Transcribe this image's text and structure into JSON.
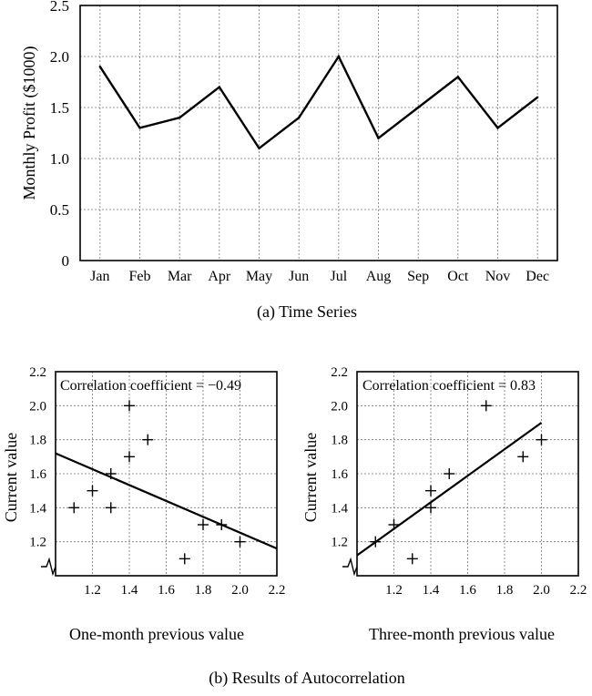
{
  "captions": {
    "time_series": "(a) Time Series",
    "autocorrelation": "(b) Results of Autocorrelation"
  },
  "chart_data": [
    {
      "type": "line",
      "title": "",
      "ylabel": "Monthly Profit ($1000)",
      "xlabel": "",
      "categories": [
        "Jan",
        "Feb",
        "Mar",
        "Apr",
        "May",
        "Jun",
        "Jul",
        "Aug",
        "Sep",
        "Oct",
        "Nov",
        "Dec"
      ],
      "values": [
        1.9,
        1.3,
        1.4,
        1.7,
        1.1,
        1.4,
        2.0,
        1.2,
        1.5,
        1.8,
        1.3,
        1.6
      ],
      "ylim": [
        0,
        2.5
      ],
      "yticks": [
        "0",
        "0.5",
        "1.0",
        "1.5",
        "2.0",
        "2.5"
      ],
      "grid": true
    },
    {
      "type": "scatter",
      "xlabel": "One-month previous value",
      "ylabel": "Current value",
      "annotation": "Correlation coefficient = −0.49",
      "xlim": [
        1.0,
        2.2
      ],
      "ylim": [
        1.0,
        2.2
      ],
      "xticks": [
        "1.2",
        "1.4",
        "1.6",
        "1.8",
        "2.0",
        "2.2"
      ],
      "yticks": [
        "1.2",
        "1.4",
        "1.6",
        "1.8",
        "2.0",
        "2.2"
      ],
      "points": [
        [
          1.1,
          1.4
        ],
        [
          1.2,
          1.5
        ],
        [
          1.3,
          1.4
        ],
        [
          1.3,
          1.6
        ],
        [
          1.4,
          1.7
        ],
        [
          1.4,
          2.0
        ],
        [
          1.5,
          1.8
        ],
        [
          1.7,
          1.1
        ],
        [
          1.8,
          1.3
        ],
        [
          1.9,
          1.3
        ],
        [
          2.0,
          1.2
        ]
      ],
      "trendline": {
        "x": [
          1.0,
          2.2
        ],
        "y": [
          1.72,
          1.16
        ]
      },
      "grid": true
    },
    {
      "type": "scatter",
      "xlabel": "Three-month previous value",
      "ylabel": "Current value",
      "annotation": "Correlation coefficient = 0.83",
      "xlim": [
        1.0,
        2.2
      ],
      "ylim": [
        1.0,
        2.2
      ],
      "xticks": [
        "1.2",
        "1.4",
        "1.6",
        "1.8",
        "2.0",
        "2.2"
      ],
      "yticks": [
        "1.2",
        "1.4",
        "1.6",
        "1.8",
        "2.0",
        "2.2"
      ],
      "points": [
        [
          1.1,
          1.2
        ],
        [
          1.2,
          1.3
        ],
        [
          1.3,
          1.1
        ],
        [
          1.4,
          1.4
        ],
        [
          1.4,
          1.5
        ],
        [
          1.5,
          1.6
        ],
        [
          1.7,
          2.0
        ],
        [
          1.9,
          1.7
        ],
        [
          2.0,
          1.8
        ]
      ],
      "trendline": {
        "x": [
          1.0,
          2.0
        ],
        "y": [
          1.12,
          1.9
        ]
      },
      "grid": true
    }
  ]
}
